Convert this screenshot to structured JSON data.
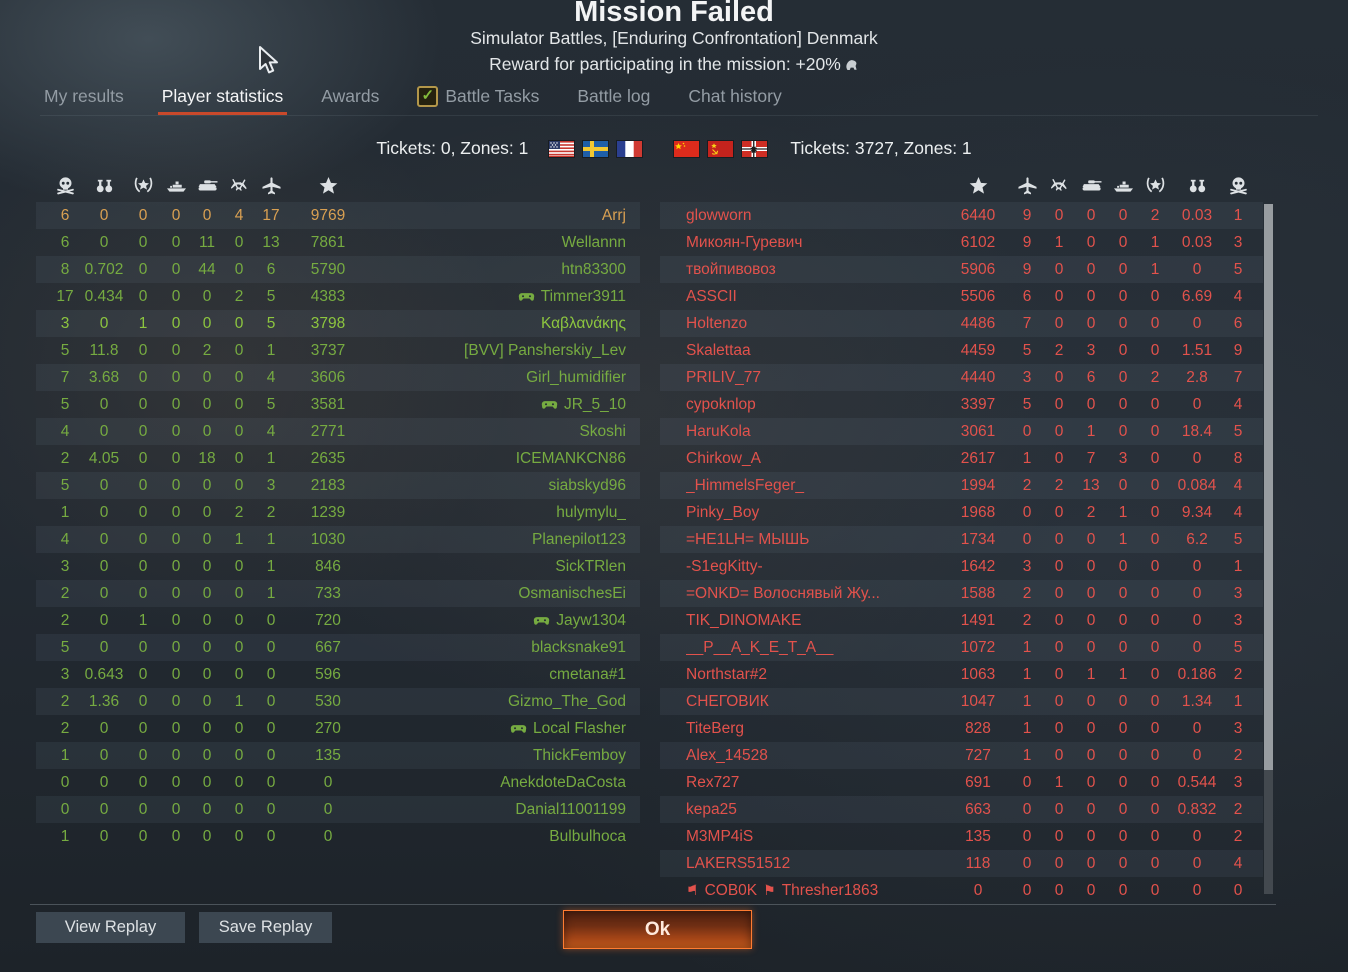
{
  "header": {
    "title": "Mission Failed",
    "subtitle": "Simulator Battles, [Enduring Confrontation] Denmark",
    "reward": "Reward for participating in the mission: +20%"
  },
  "tabs": [
    {
      "label": "My results",
      "active": false,
      "checkbox": false
    },
    {
      "label": "Player statistics",
      "active": true,
      "checkbox": false
    },
    {
      "label": "Awards",
      "active": false,
      "checkbox": false
    },
    {
      "label": "Battle Tasks",
      "active": false,
      "checkbox": true
    },
    {
      "label": "Battle log",
      "active": false,
      "checkbox": false
    },
    {
      "label": "Chat history",
      "active": false,
      "checkbox": false
    }
  ],
  "tickets": {
    "left": "Tickets: 0, Zones: 1",
    "right": "Tickets: 3727, Zones: 1",
    "left_flags": [
      "usa",
      "sweden",
      "france"
    ],
    "right_flags": [
      "china",
      "ussr",
      "germany"
    ]
  },
  "table_icons": {
    "left": [
      "deaths",
      "bombs",
      "award",
      "ship-kills",
      "ground-kills",
      "air-assists",
      "air-kills",
      "score"
    ],
    "right": [
      "score",
      "air-kills",
      "air-assists",
      "ground-kills",
      "ship-kills",
      "award",
      "bombs",
      "deaths"
    ]
  },
  "left_team": {
    "rows": [
      {
        "stats": [
          "6",
          "0",
          "0",
          "0",
          "0",
          "4",
          "17"
        ],
        "score": "9769",
        "name": "Arrj",
        "self": true,
        "bright": false,
        "gamepad": false
      },
      {
        "stats": [
          "6",
          "0",
          "0",
          "0",
          "11",
          "0",
          "13"
        ],
        "score": "7861",
        "name": "Wellannn",
        "self": false,
        "bright": false,
        "gamepad": false
      },
      {
        "stats": [
          "8",
          "0.702",
          "0",
          "0",
          "44",
          "0",
          "6"
        ],
        "score": "5790",
        "name": "htn83300",
        "self": false,
        "bright": false,
        "gamepad": false
      },
      {
        "stats": [
          "17",
          "0.434",
          "0",
          "0",
          "0",
          "2",
          "5"
        ],
        "score": "4383",
        "name": "Timmer3911",
        "self": false,
        "bright": false,
        "gamepad": true
      },
      {
        "stats": [
          "3",
          "0",
          "1",
          "0",
          "0",
          "0",
          "5"
        ],
        "score": "3798",
        "name": "Καβλανάκης",
        "self": false,
        "bright": true,
        "gamepad": false
      },
      {
        "stats": [
          "5",
          "11.8",
          "0",
          "0",
          "2",
          "0",
          "1"
        ],
        "score": "3737",
        "name": "[BVV] Pansherskiy_Lev",
        "self": false,
        "bright": false,
        "gamepad": false
      },
      {
        "stats": [
          "7",
          "3.68",
          "0",
          "0",
          "0",
          "0",
          "4"
        ],
        "score": "3606",
        "name": "Girl_humidifier",
        "self": false,
        "bright": false,
        "gamepad": false
      },
      {
        "stats": [
          "5",
          "0",
          "0",
          "0",
          "0",
          "0",
          "5"
        ],
        "score": "3581",
        "name": "JR_5_10",
        "self": false,
        "bright": false,
        "gamepad": true
      },
      {
        "stats": [
          "4",
          "0",
          "0",
          "0",
          "0",
          "0",
          "4"
        ],
        "score": "2771",
        "name": "Skoshi",
        "self": false,
        "bright": false,
        "gamepad": false
      },
      {
        "stats": [
          "2",
          "4.05",
          "0",
          "0",
          "18",
          "0",
          "1"
        ],
        "score": "2635",
        "name": "ICEMANKCN86",
        "self": false,
        "bright": false,
        "gamepad": false
      },
      {
        "stats": [
          "5",
          "0",
          "0",
          "0",
          "0",
          "0",
          "3"
        ],
        "score": "2183",
        "name": "siabskyd96",
        "self": false,
        "bright": false,
        "gamepad": false
      },
      {
        "stats": [
          "1",
          "0",
          "0",
          "0",
          "0",
          "2",
          "2"
        ],
        "score": "1239",
        "name": "hulymylu_",
        "self": false,
        "bright": false,
        "gamepad": false
      },
      {
        "stats": [
          "4",
          "0",
          "0",
          "0",
          "0",
          "1",
          "1"
        ],
        "score": "1030",
        "name": "Planepilot123",
        "self": false,
        "bright": false,
        "gamepad": false
      },
      {
        "stats": [
          "3",
          "0",
          "0",
          "0",
          "0",
          "0",
          "1"
        ],
        "score": "846",
        "name": "SickTRlen",
        "self": false,
        "bright": false,
        "gamepad": false
      },
      {
        "stats": [
          "2",
          "0",
          "0",
          "0",
          "0",
          "0",
          "1"
        ],
        "score": "733",
        "name": "OsmanischesEi",
        "self": false,
        "bright": false,
        "gamepad": false
      },
      {
        "stats": [
          "2",
          "0",
          "1",
          "0",
          "0",
          "0",
          "0"
        ],
        "score": "720",
        "name": "Jayw1304",
        "self": false,
        "bright": false,
        "gamepad": true
      },
      {
        "stats": [
          "5",
          "0",
          "0",
          "0",
          "0",
          "0",
          "0"
        ],
        "score": "667",
        "name": "blacksnake91",
        "self": false,
        "bright": false,
        "gamepad": false
      },
      {
        "stats": [
          "3",
          "0.643",
          "0",
          "0",
          "0",
          "0",
          "0"
        ],
        "score": "596",
        "name": "cmetana#1",
        "self": false,
        "bright": false,
        "gamepad": false
      },
      {
        "stats": [
          "2",
          "1.36",
          "0",
          "0",
          "0",
          "1",
          "0"
        ],
        "score": "530",
        "name": "Gizmo_The_God",
        "self": false,
        "bright": false,
        "gamepad": false
      },
      {
        "stats": [
          "2",
          "0",
          "0",
          "0",
          "0",
          "0",
          "0"
        ],
        "score": "270",
        "name": "Local Flasher",
        "self": false,
        "bright": false,
        "gamepad": true
      },
      {
        "stats": [
          "1",
          "0",
          "0",
          "0",
          "0",
          "0",
          "0"
        ],
        "score": "135",
        "name": "ThickFemboy",
        "self": false,
        "bright": false,
        "gamepad": false
      },
      {
        "stats": [
          "0",
          "0",
          "0",
          "0",
          "0",
          "0",
          "0"
        ],
        "score": "0",
        "name": "AnekdoteDaCosta",
        "self": false,
        "bright": false,
        "gamepad": false
      },
      {
        "stats": [
          "0",
          "0",
          "0",
          "0",
          "0",
          "0",
          "0"
        ],
        "score": "0",
        "name": "Danial11001199",
        "self": false,
        "bright": false,
        "gamepad": false
      },
      {
        "stats": [
          "1",
          "0",
          "0",
          "0",
          "0",
          "0",
          "0"
        ],
        "score": "0",
        "name": "Bulbulhoca",
        "self": false,
        "bright": false,
        "gamepad": false
      }
    ]
  },
  "right_team": {
    "rows": [
      {
        "name": "glowworn",
        "score": "6440",
        "stats": [
          "9",
          "0",
          "0",
          "0",
          "2",
          "0.03",
          "1"
        ],
        "clan": ""
      },
      {
        "name": "Микоян-Гуревич",
        "score": "6102",
        "stats": [
          "9",
          "1",
          "0",
          "0",
          "1",
          "0.03",
          "3"
        ],
        "clan": ""
      },
      {
        "name": "твойпивовоз",
        "score": "5906",
        "stats": [
          "9",
          "0",
          "0",
          "0",
          "1",
          "0",
          "5"
        ],
        "clan": ""
      },
      {
        "name": "ASSCII",
        "score": "5506",
        "stats": [
          "6",
          "0",
          "0",
          "0",
          "0",
          "6.69",
          "4"
        ],
        "clan": ""
      },
      {
        "name": "Holtenzo",
        "score": "4486",
        "stats": [
          "7",
          "0",
          "0",
          "0",
          "0",
          "0",
          "6"
        ],
        "clan": ""
      },
      {
        "name": "Skalettaa",
        "score": "4459",
        "stats": [
          "5",
          "2",
          "3",
          "0",
          "0",
          "1.51",
          "9"
        ],
        "clan": ""
      },
      {
        "name": "PRILIV_77",
        "score": "4440",
        "stats": [
          "3",
          "0",
          "6",
          "0",
          "2",
          "2.8",
          "7"
        ],
        "clan": ""
      },
      {
        "name": "cypoknlop",
        "score": "3397",
        "stats": [
          "5",
          "0",
          "0",
          "0",
          "0",
          "0",
          "4"
        ],
        "clan": ""
      },
      {
        "name": "HaruKola",
        "score": "3061",
        "stats": [
          "0",
          "0",
          "1",
          "0",
          "0",
          "18.4",
          "5"
        ],
        "clan": ""
      },
      {
        "name": "Chirkow_A",
        "score": "2617",
        "stats": [
          "1",
          "0",
          "7",
          "3",
          "0",
          "0",
          "8"
        ],
        "clan": ""
      },
      {
        "name": "_HimmelsFeger_",
        "score": "1994",
        "stats": [
          "2",
          "2",
          "13",
          "0",
          "0",
          "0.084",
          "4"
        ],
        "clan": ""
      },
      {
        "name": "Pinky_Boy",
        "score": "1968",
        "stats": [
          "0",
          "0",
          "2",
          "1",
          "0",
          "9.34",
          "4"
        ],
        "clan": ""
      },
      {
        "name": "=HE1LH= МЫШЬ",
        "score": "1734",
        "stats": [
          "0",
          "0",
          "0",
          "1",
          "0",
          "6.2",
          "5"
        ],
        "clan": ""
      },
      {
        "name": "-S1egKitty-",
        "score": "1642",
        "stats": [
          "3",
          "0",
          "0",
          "0",
          "0",
          "0",
          "1"
        ],
        "clan": ""
      },
      {
        "name": "=ONKD= Волоснявый Жу...",
        "score": "1588",
        "stats": [
          "2",
          "0",
          "0",
          "0",
          "0",
          "0",
          "3"
        ],
        "clan": ""
      },
      {
        "name": "TIK_DINOMAKE",
        "score": "1491",
        "stats": [
          "2",
          "0",
          "0",
          "0",
          "0",
          "0",
          "3"
        ],
        "clan": ""
      },
      {
        "name": "__P__A_K_E_T_A__",
        "score": "1072",
        "stats": [
          "1",
          "0",
          "0",
          "0",
          "0",
          "0",
          "5"
        ],
        "clan": ""
      },
      {
        "name": "Northstar#2",
        "score": "1063",
        "stats": [
          "1",
          "0",
          "1",
          "1",
          "0",
          "0.186",
          "2"
        ],
        "clan": ""
      },
      {
        "name": "СНЕГОВИК",
        "score": "1047",
        "stats": [
          "1",
          "0",
          "0",
          "0",
          "0",
          "1.34",
          "1"
        ],
        "clan": ""
      },
      {
        "name": "TiteBerg",
        "score": "828",
        "stats": [
          "1",
          "0",
          "0",
          "0",
          "0",
          "0",
          "3"
        ],
        "clan": ""
      },
      {
        "name": "Alex_14528",
        "score": "727",
        "stats": [
          "1",
          "0",
          "0",
          "0",
          "0",
          "0",
          "2"
        ],
        "clan": ""
      },
      {
        "name": "Rex727",
        "score": "691",
        "stats": [
          "0",
          "1",
          "0",
          "0",
          "0",
          "0.544",
          "3"
        ],
        "clan": ""
      },
      {
        "name": "kepa25",
        "score": "663",
        "stats": [
          "0",
          "0",
          "0",
          "0",
          "0",
          "0.832",
          "2"
        ],
        "clan": ""
      },
      {
        "name": "M3MP4iS",
        "score": "135",
        "stats": [
          "0",
          "0",
          "0",
          "0",
          "0",
          "0",
          "2"
        ],
        "clan": ""
      },
      {
        "name": "LAKERS51512",
        "score": "118",
        "stats": [
          "0",
          "0",
          "0",
          "0",
          "0",
          "0",
          "4"
        ],
        "clan": ""
      },
      {
        "name": "Thresher1863",
        "score": "0",
        "stats": [
          "0",
          "0",
          "0",
          "0",
          "0",
          "0",
          "0"
        ],
        "clan": "COB0K"
      }
    ]
  },
  "footer": {
    "view_replay": "View Replay",
    "save_replay": "Save Replay",
    "ok": "Ok"
  },
  "colors": {
    "team_green": "#76ab41",
    "team_green_bright": "#8dc63f",
    "team_red": "#e2524c",
    "self_orange": "#d9a052",
    "tab_underline": "#c9492b",
    "ok_border": "#ff7c31"
  }
}
